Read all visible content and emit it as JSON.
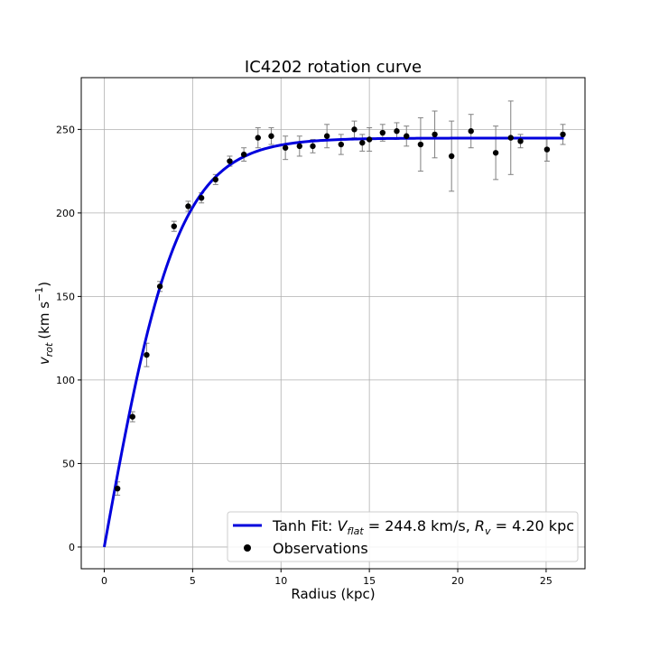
{
  "chart_data": {
    "type": "scatter",
    "title": "IC4202 rotation curve",
    "xlabel": "Radius (kpc)",
    "ylabel_main": "v",
    "ylabel_sub": "rot",
    "ylabel_units": "(km s",
    "ylabel_exp": "−1",
    "ylabel_close": ")",
    "xlim": [
      -1.3,
      27.2
    ],
    "ylim": [
      -13,
      281
    ],
    "xticks": [
      0,
      5,
      10,
      15,
      20,
      25
    ],
    "yticks": [
      0,
      50,
      100,
      150,
      200,
      250
    ],
    "grid": true,
    "legend_position": "lower-right",
    "colors": {
      "fit": "#0000dd",
      "points": "#000000",
      "errorbars": "#808080",
      "grid": "#b0b0b0"
    },
    "series": [
      {
        "name": "Tanh Fit: V_flat = 244.8 km/s, R_v = 4.20 kpc",
        "legend_prefix": "Tanh Fit: ",
        "legend_math": "V",
        "legend_math_sub": "flat",
        "legend_mid": " = 244.8 km/s, ",
        "legend_math2": "R",
        "legend_math2_sub": "v",
        "legend_suffix": " = 4.20 kpc",
        "kind": "line",
        "model": "tanh",
        "vflat": 244.8,
        "rv": 4.2,
        "xrange": [
          0,
          26
        ]
      },
      {
        "name": "Observations",
        "kind": "errorbar",
        "x": [
          0.75,
          1.6,
          2.4,
          3.15,
          3.95,
          4.75,
          5.5,
          6.3,
          7.1,
          7.9,
          8.7,
          9.45,
          10.25,
          11.05,
          11.8,
          12.6,
          13.4,
          14.15,
          14.6,
          15.0,
          15.75,
          16.55,
          17.1,
          17.9,
          18.7,
          19.65,
          20.75,
          22.15,
          23.0,
          23.55,
          25.05,
          25.95
        ],
        "y": [
          35,
          78,
          115,
          156,
          192,
          204,
          209,
          220,
          231,
          235,
          245,
          246,
          239,
          240,
          240,
          246,
          241,
          250,
          242,
          244,
          248,
          249,
          246,
          241,
          247,
          234,
          249,
          236,
          245,
          243,
          238,
          247
        ],
        "yerr": [
          4,
          3,
          7,
          3,
          3,
          3,
          3,
          3,
          3,
          4,
          6,
          5,
          7,
          6,
          4,
          7,
          6,
          5,
          5,
          7,
          5,
          5,
          6,
          16,
          14,
          21,
          10,
          16,
          22,
          4,
          7,
          6
        ]
      }
    ]
  }
}
